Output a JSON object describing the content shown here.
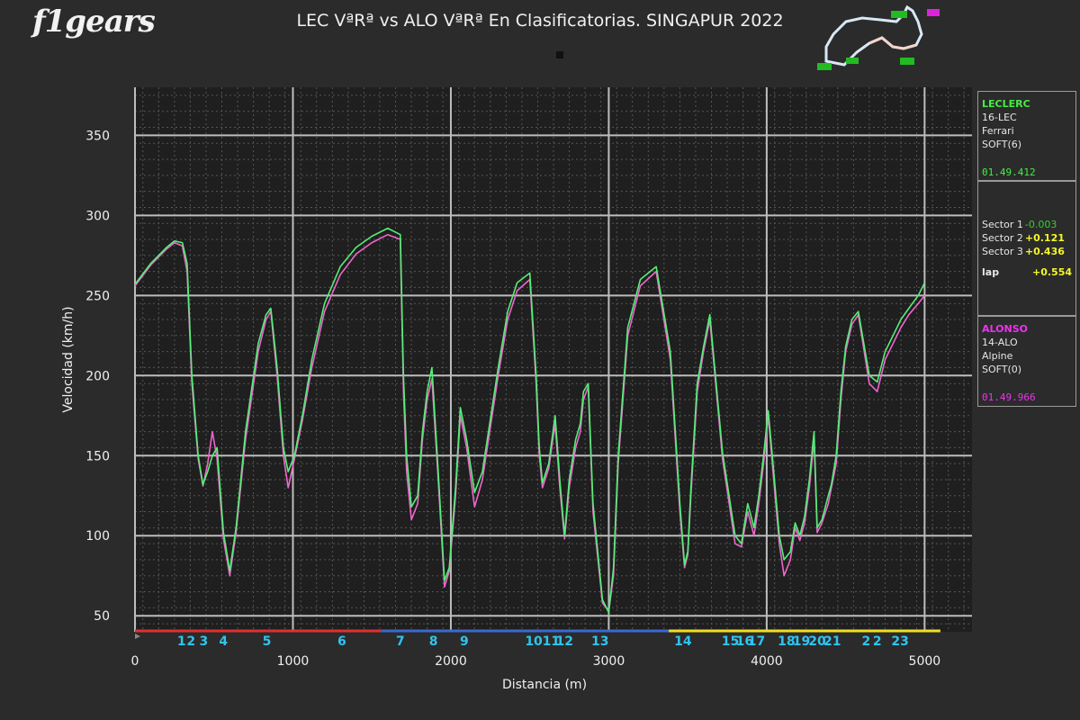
{
  "header": {
    "logo": "f1gears",
    "title": "LEC VªRª vs ALO VªRª En Clasificatorias. SINGAPUR 2022"
  },
  "colors": {
    "background": "#2b2b2b",
    "plot_background": "#1f1f1f",
    "lec": "#55ee77",
    "alo": "#ee66cc",
    "turn_labels": "#2ec4f0",
    "sector1": "#e03030",
    "sector2": "#3a6ad0",
    "sector3": "#f0e020"
  },
  "drivers": {
    "leclerc": {
      "name": "LECLERC",
      "code": "16-LEC",
      "team": "Ferrari",
      "tyre": "SOFT(6)",
      "laptime": "01.49.412"
    },
    "alonso": {
      "name": "ALONSO",
      "code": "14-ALO",
      "team": "Alpine",
      "tyre": "SOFT(0)",
      "laptime": "01.49.966"
    }
  },
  "deltas": {
    "s1_label": "Sector 1",
    "s1": "-0.003",
    "s2_label": "Sector 2",
    "s2": "+0.121",
    "s3_label": "Sector 3",
    "s3": "+0.436",
    "lap_label": "lap",
    "lap": "+0.554"
  },
  "chart_data": {
    "type": "line",
    "title": "LEC VªRª vs ALO VªRª En Clasificatorias. SINGAPUR 2022",
    "xlabel": "Distancia (m)",
    "ylabel": "Velocidad (km/h)",
    "xlim": [
      0,
      5300
    ],
    "ylim": [
      40,
      380
    ],
    "xticks": [
      0,
      1000,
      2000,
      3000,
      4000,
      5000
    ],
    "yticks": [
      50,
      100,
      150,
      200,
      250,
      300,
      350
    ],
    "grid": true,
    "series": [
      {
        "name": "LECLERC",
        "color": "#55ee77",
        "x": [
          0,
          100,
          200,
          250,
          300,
          330,
          360,
          400,
          430,
          460,
          490,
          520,
          560,
          600,
          640,
          700,
          780,
          830,
          860,
          900,
          940,
          970,
          1010,
          1060,
          1120,
          1200,
          1300,
          1400,
          1500,
          1600,
          1680,
          1700,
          1720,
          1750,
          1790,
          1820,
          1850,
          1880,
          1920,
          1960,
          1990,
          2030,
          2060,
          2100,
          2150,
          2200,
          2300,
          2360,
          2420,
          2500,
          2540,
          2560,
          2580,
          2620,
          2660,
          2690,
          2720,
          2750,
          2790,
          2820,
          2840,
          2870,
          2900,
          2960,
          3000,
          3030,
          3060,
          3120,
          3200,
          3300,
          3390,
          3450,
          3480,
          3500,
          3520,
          3560,
          3600,
          3640,
          3720,
          3800,
          3840,
          3880,
          3920,
          3950,
          3980,
          4010,
          4040,
          4080,
          4110,
          4150,
          4180,
          4210,
          4240,
          4270,
          4300,
          4320,
          4350,
          4390,
          4410,
          4440,
          4470,
          4500,
          4540,
          4580,
          4650,
          4700,
          4750,
          4800,
          4850,
          4900,
          4960,
          5000
        ],
        "y": [
          257,
          270,
          280,
          284,
          283,
          270,
          200,
          150,
          132,
          140,
          150,
          155,
          102,
          78,
          105,
          165,
          220,
          238,
          242,
          205,
          155,
          140,
          150,
          175,
          210,
          245,
          268,
          280,
          287,
          292,
          288,
          200,
          150,
          118,
          125,
          165,
          190,
          205,
          140,
          72,
          80,
          130,
          180,
          160,
          127,
          140,
          205,
          240,
          258,
          264,
          200,
          155,
          133,
          145,
          175,
          135,
          100,
          135,
          160,
          170,
          190,
          195,
          120,
          60,
          52,
          80,
          150,
          230,
          260,
          268,
          215,
          120,
          82,
          90,
          130,
          195,
          218,
          238,
          152,
          100,
          95,
          120,
          105,
          125,
          150,
          178,
          145,
          100,
          85,
          90,
          108,
          100,
          112,
          135,
          165,
          105,
          110,
          125,
          132,
          150,
          190,
          218,
          235,
          240,
          200,
          196,
          215,
          225,
          235,
          242,
          250,
          258
        ]
      },
      {
        "name": "ALONSO",
        "color": "#ee66cc",
        "x": [
          0,
          100,
          200,
          250,
          300,
          330,
          360,
          400,
          430,
          460,
          490,
          520,
          560,
          600,
          640,
          700,
          780,
          830,
          860,
          900,
          940,
          970,
          1010,
          1060,
          1120,
          1200,
          1300,
          1400,
          1500,
          1600,
          1680,
          1700,
          1720,
          1750,
          1790,
          1820,
          1850,
          1880,
          1920,
          1960,
          1990,
          2030,
          2060,
          2100,
          2150,
          2200,
          2300,
          2360,
          2420,
          2500,
          2540,
          2560,
          2580,
          2620,
          2660,
          2690,
          2720,
          2750,
          2790,
          2820,
          2840,
          2870,
          2900,
          2960,
          3000,
          3030,
          3060,
          3120,
          3200,
          3300,
          3390,
          3450,
          3480,
          3500,
          3520,
          3560,
          3600,
          3640,
          3720,
          3800,
          3840,
          3880,
          3920,
          3950,
          3980,
          4010,
          4040,
          4080,
          4110,
          4150,
          4180,
          4210,
          4240,
          4270,
          4300,
          4320,
          4350,
          4390,
          4410,
          4440,
          4470,
          4500,
          4540,
          4580,
          4650,
          4700,
          4750,
          4800,
          4850,
          4900,
          4960,
          5000
        ],
        "y": [
          256,
          269,
          279,
          283,
          281,
          265,
          195,
          148,
          131,
          145,
          165,
          148,
          98,
          75,
          102,
          160,
          215,
          235,
          240,
          200,
          150,
          130,
          148,
          172,
          205,
          240,
          263,
          276,
          283,
          288,
          285,
          190,
          140,
          110,
          120,
          160,
          185,
          198,
          135,
          68,
          78,
          125,
          175,
          155,
          118,
          135,
          200,
          235,
          253,
          260,
          195,
          150,
          130,
          142,
          170,
          130,
          98,
          130,
          155,
          165,
          185,
          193,
          115,
          58,
          53,
          75,
          145,
          225,
          256,
          265,
          210,
          115,
          80,
          88,
          125,
          190,
          215,
          235,
          148,
          95,
          93,
          115,
          100,
          120,
          145,
          175,
          140,
          95,
          75,
          85,
          105,
          97,
          108,
          130,
          160,
          102,
          108,
          120,
          130,
          145,
          185,
          215,
          232,
          238,
          195,
          190,
          210,
          220,
          230,
          238,
          245,
          250
        ]
      }
    ],
    "sectors": [
      {
        "start": 0,
        "end": 1560,
        "color": "#e03030"
      },
      {
        "start": 1560,
        "end": 3380,
        "color": "#3a6ad0"
      },
      {
        "start": 3380,
        "end": 5100,
        "color": "#f0e020"
      }
    ],
    "turns": [
      {
        "label": "1",
        "x": 295
      },
      {
        "label": "2",
        "x": 355
      },
      {
        "label": "3",
        "x": 435
      },
      {
        "label": "4",
        "x": 560
      },
      {
        "label": "5",
        "x": 835
      },
      {
        "label": "6",
        "x": 1310
      },
      {
        "label": "7",
        "x": 1680
      },
      {
        "label": "8",
        "x": 1890
      },
      {
        "label": "9",
        "x": 2085
      },
      {
        "label": "10",
        "x": 2525
      },
      {
        "label": "11",
        "x": 2635
      },
      {
        "label": "12",
        "x": 2720
      },
      {
        "label": "13",
        "x": 2945
      },
      {
        "label": "14",
        "x": 3470
      },
      {
        "label": "15",
        "x": 3770
      },
      {
        "label": "16",
        "x": 3860
      },
      {
        "label": "17",
        "x": 3935
      },
      {
        "label": "18",
        "x": 4125
      },
      {
        "label": "19",
        "x": 4220
      },
      {
        "label": "20",
        "x": 4320
      },
      {
        "label": "21",
        "x": 4415
      },
      {
        "label": "2",
        "x": 4630
      },
      {
        "label": "2",
        "x": 4700
      },
      {
        "label": "23",
        "x": 4845
      }
    ]
  }
}
